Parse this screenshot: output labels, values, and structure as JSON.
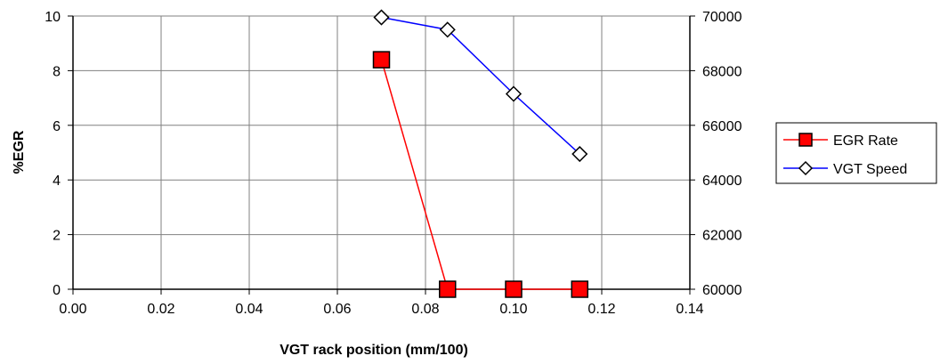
{
  "chart_data": {
    "type": "line",
    "xlabel": "VGT rack position (mm/100)",
    "ylabel": "%EGR",
    "y2label": "",
    "xlim": [
      0.0,
      0.14
    ],
    "ylim": [
      0,
      10
    ],
    "y2lim": [
      60000,
      70000
    ],
    "x_ticks": [
      "0.00",
      "0.02",
      "0.04",
      "0.06",
      "0.08",
      "0.10",
      "0.12",
      "0.14"
    ],
    "y_ticks": [
      "0",
      "2",
      "4",
      "6",
      "8",
      "10"
    ],
    "y2_ticks": [
      "60000",
      "62000",
      "64000",
      "66000",
      "68000",
      "70000"
    ],
    "grid": true,
    "legend_position": "right",
    "series": [
      {
        "name": "EGR Rate",
        "axis": "left",
        "color": "#ff0000",
        "marker": "square",
        "marker_fill": "#ff0000",
        "x": [
          0.07,
          0.085,
          0.1,
          0.115
        ],
        "y": [
          8.4,
          0,
          0,
          0
        ]
      },
      {
        "name": "VGT Speed",
        "axis": "right",
        "color": "#0000ff",
        "marker": "diamond",
        "marker_fill": "#ffffff",
        "x": [
          0.07,
          0.085,
          0.1,
          0.115
        ],
        "y": [
          69950,
          69500,
          67150,
          64950
        ]
      }
    ]
  }
}
